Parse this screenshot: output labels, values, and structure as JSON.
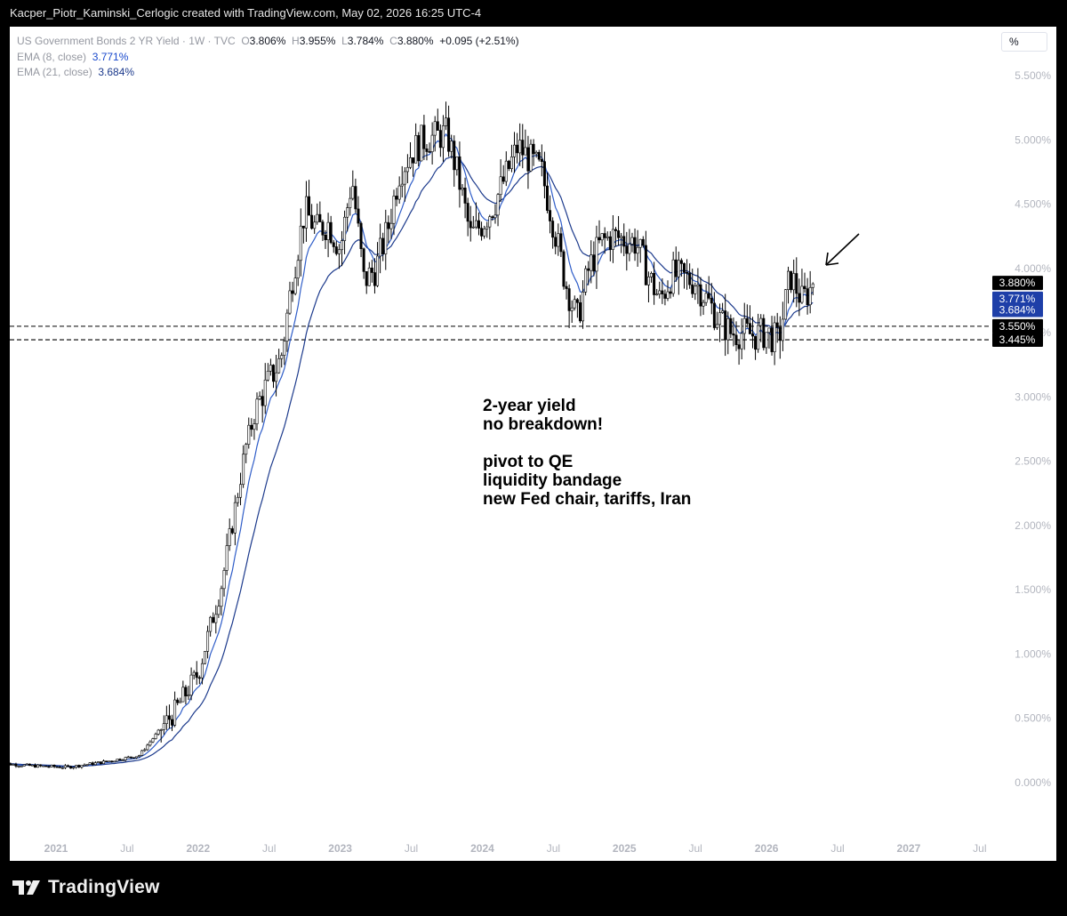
{
  "header": {
    "attribution": "Kacper_Piotr_Kaminski_Cerlogic created with TradingView.com, May 02, 2026 16:25 UTC-4"
  },
  "legend": {
    "symbol": "US Government Bonds 2 YR Yield · 1W · TVC",
    "o_label": "O",
    "o_value": "3.806%",
    "h_label": "H",
    "h_value": "3.955%",
    "l_label": "L",
    "l_value": "3.784%",
    "c_label": "C",
    "c_value": "3.880%",
    "change": "+0.095 (+2.51%)",
    "ema8_label": "EMA (8, close)",
    "ema8_value": "3.771%",
    "ema21_label": "EMA (21, close)",
    "ema21_value": "3.684%"
  },
  "scale_button": "%",
  "annotation": {
    "lines": [
      "2-year yield",
      "no breakdown!",
      "",
      "pivot to QE",
      "liquidity bandage",
      "new Fed chair, tariffs, Iran"
    ]
  },
  "branding": {
    "name": "TradingView"
  },
  "colors": {
    "candle_up": "#ffffff",
    "candle_down": "#000000",
    "ema8": "#2f5dc8",
    "ema21": "#1c3a8c",
    "price_tag": "#000000",
    "ema_tag": "#1e3fa8"
  },
  "chart_data": {
    "type": "candlestick",
    "y_unit": "%",
    "ylim": [
      -0.1,
      5.6
    ],
    "y_ticks": [
      "0.000%",
      "0.500%",
      "1.000%",
      "1.500%",
      "2.000%",
      "2.500%",
      "3.000%",
      "3.500%",
      "4.000%",
      "4.500%",
      "5.000%",
      "5.500%"
    ],
    "y_tick_values": [
      0,
      0.5,
      1,
      1.5,
      2,
      2.5,
      3,
      3.5,
      4,
      4.5,
      5,
      5.5
    ],
    "x_ticks": [
      "2021",
      "Jul",
      "2022",
      "Jul",
      "2023",
      "Jul",
      "2024",
      "Jul",
      "2025",
      "Jul",
      "2026",
      "Jul",
      "2027",
      "Jul"
    ],
    "x_tick_dates": [
      "2021-01",
      "2021-07",
      "2022-01",
      "2022-07",
      "2023-01",
      "2023-07",
      "2024-01",
      "2024-07",
      "2025-01",
      "2025-07",
      "2026-01",
      "2026-07",
      "2027-01",
      "2027-07"
    ],
    "year_ticks": [
      "2021",
      "2022",
      "2023",
      "2024",
      "2025",
      "2026",
      "2027"
    ],
    "x_range": [
      "2020-08",
      "2027-09"
    ],
    "price_series": {
      "name": "US Government Bonds 2 YR Yield",
      "dates": [
        "2020-08",
        "2020-11",
        "2021-02",
        "2021-05",
        "2021-08",
        "2021-11",
        "2022-01",
        "2022-03",
        "2022-05",
        "2022-06",
        "2022-08",
        "2022-09",
        "2022-10",
        "2022-11",
        "2022-12",
        "2023-01",
        "2023-02",
        "2023-03",
        "2023-04",
        "2023-05",
        "2023-06",
        "2023-07",
        "2023-08",
        "2023-10",
        "2023-11",
        "2023-12",
        "2024-01",
        "2024-02",
        "2024-04",
        "2024-05",
        "2024-06",
        "2024-07",
        "2024-08",
        "2024-09",
        "2024-10",
        "2024-11",
        "2024-12",
        "2025-02",
        "2025-03",
        "2025-04",
        "2025-05",
        "2025-07",
        "2025-08",
        "2025-09",
        "2025-10",
        "2025-11",
        "2025-12",
        "2026-01",
        "2026-02",
        "2026-03",
        "2026-04",
        "2026-05"
      ],
      "values": [
        0.15,
        0.13,
        0.12,
        0.16,
        0.21,
        0.55,
        0.85,
        1.55,
        2.6,
        2.95,
        3.3,
        3.95,
        4.45,
        4.3,
        4.35,
        4.15,
        4.7,
        3.9,
        4.0,
        4.3,
        4.75,
        4.9,
        5.0,
        5.05,
        4.7,
        4.25,
        4.35,
        4.5,
        4.95,
        4.85,
        4.75,
        4.35,
        3.9,
        3.6,
        4.0,
        4.2,
        4.25,
        4.2,
        3.95,
        3.75,
        3.95,
        3.9,
        3.75,
        3.6,
        3.5,
        3.5,
        3.48,
        3.5,
        3.43,
        3.95,
        3.75,
        3.88
      ]
    },
    "series": [
      {
        "name": "EMA (8, close)",
        "last_value": 3.771
      },
      {
        "name": "EMA (21, close)",
        "last_value": 3.684
      }
    ],
    "horizontal_levels": [
      3.55,
      3.445
    ],
    "price_tags": [
      "3.880%",
      "3.771%",
      "3.684%",
      "3.550%",
      "3.445%"
    ],
    "price_tag_values": [
      3.88,
      3.771,
      3.684,
      3.55,
      3.445
    ],
    "arrow_annotation": "pointing at latest candles",
    "grid": false
  }
}
